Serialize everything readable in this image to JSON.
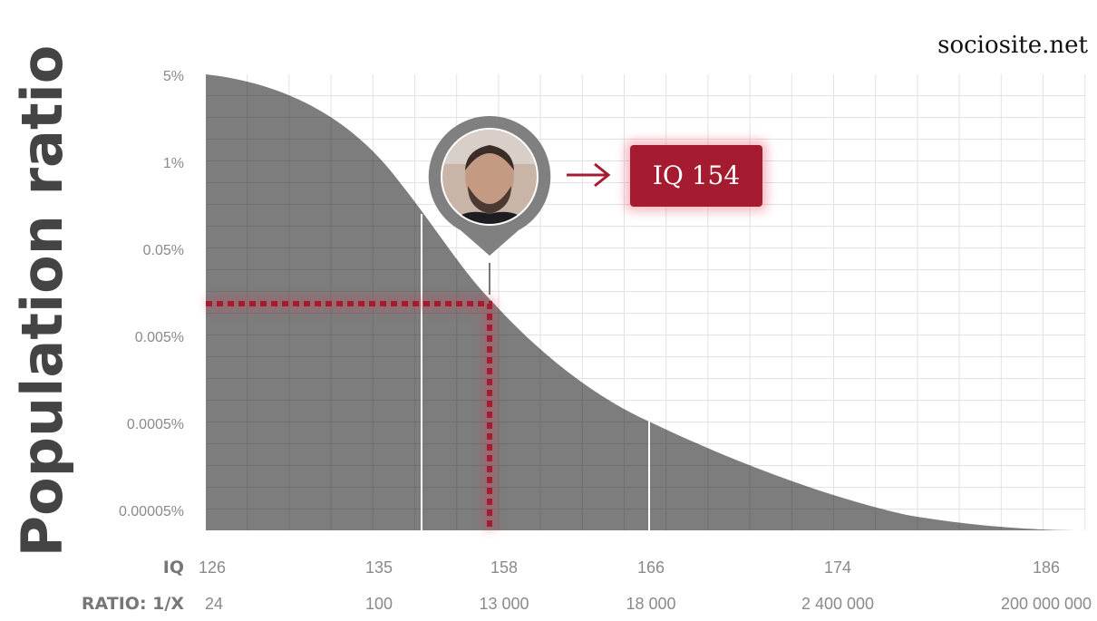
{
  "site": "sociosite.net",
  "y_axis": {
    "title": "Population ratio",
    "labels": [
      "5%",
      "1%",
      "0.05%",
      "0.005%",
      "0.0005%",
      "0.00005%"
    ]
  },
  "x_axis": {
    "iq_label": "IQ",
    "iq_values": [
      "126",
      "135",
      "158",
      "166",
      "174",
      "186"
    ],
    "ratio_label": "RATIO: 1/X",
    "ratio_values": [
      "24",
      "100",
      "13 000",
      "18 000",
      "2 400 000",
      "200 000 000"
    ]
  },
  "badge": "IQ 154"
}
